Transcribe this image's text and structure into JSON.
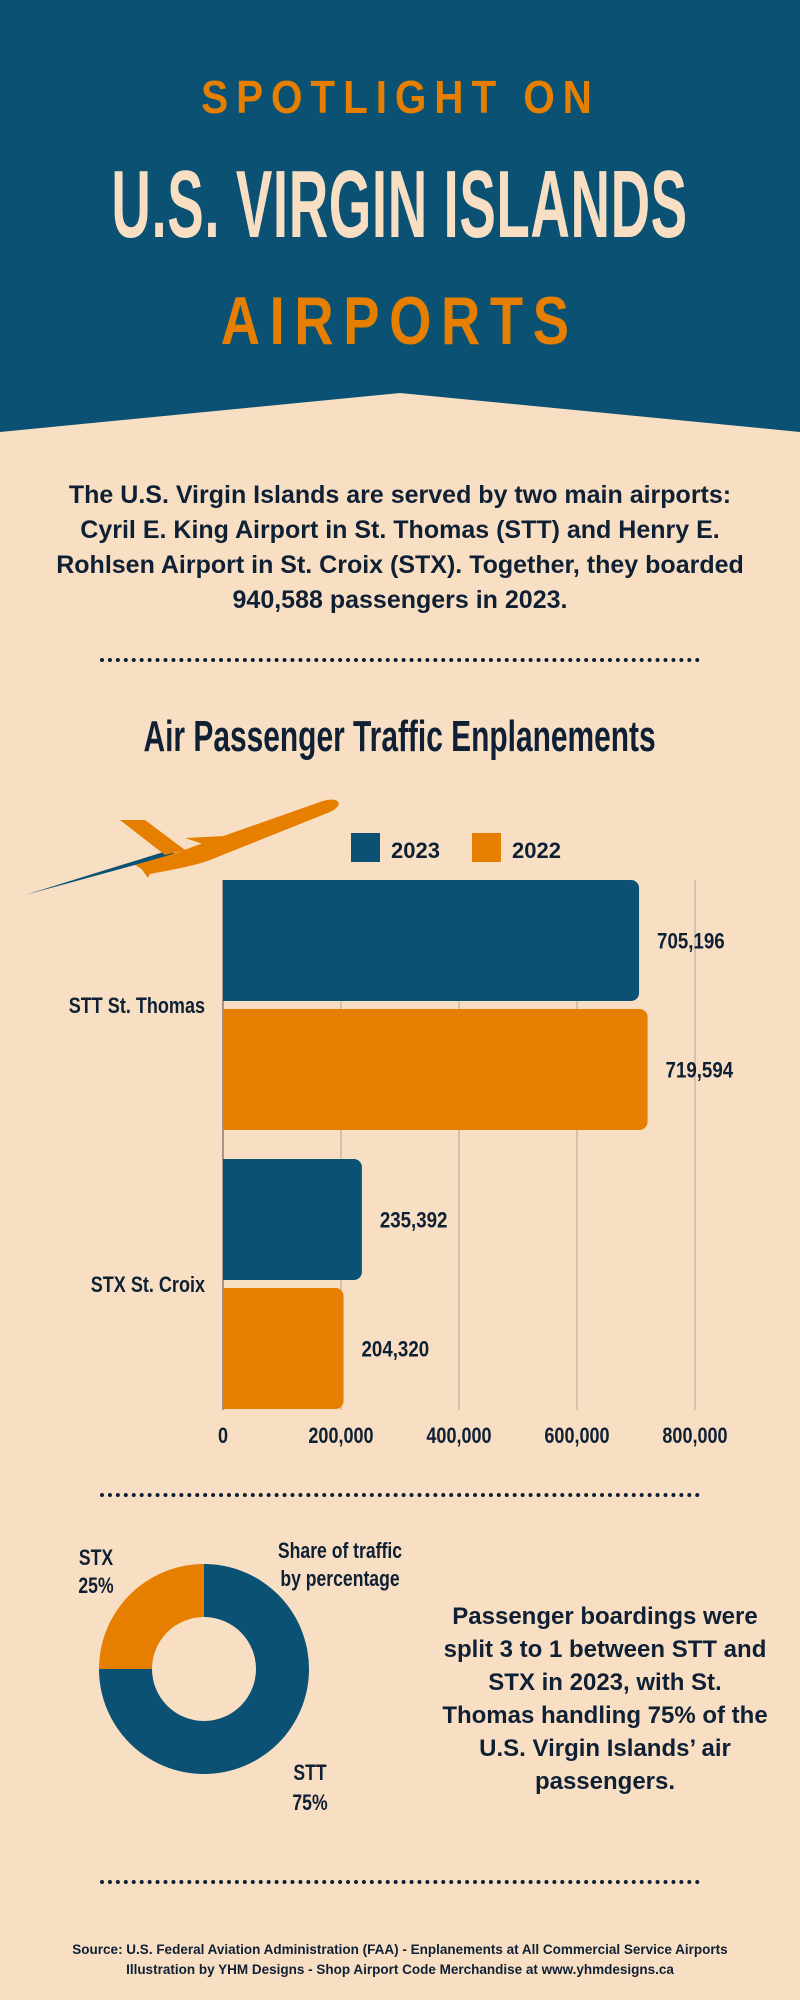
{
  "header": {
    "kicker": "SPOTLIGHT ON",
    "title": "U.S. VIRGIN ISLANDS",
    "subtitle": "AIRPORTS"
  },
  "intro": "The U.S. Virgin Islands are served by two main airports: Cyril E. King Airport in St. Thomas (STT) and Henry E. Rohlsen Airport in St. Croix (STX). Together, they boarded 940,588 passengers in 2023.",
  "colors": {
    "blue": "#0a5173",
    "orange": "#e67e00",
    "cream": "#f8dfc4",
    "text": "#0f2035"
  },
  "chart_data": [
    {
      "type": "bar",
      "orientation": "horizontal",
      "title": "Air Passenger Traffic Enplanements",
      "categories": [
        "STT St. Thomas",
        "STX St. Croix"
      ],
      "series": [
        {
          "name": "2023",
          "color": "#0a5173",
          "values": [
            705196,
            235392
          ],
          "labels": [
            "705,196",
            "235,392"
          ]
        },
        {
          "name": "2022",
          "color": "#e67e00",
          "values": [
            719594,
            204320
          ],
          "labels": [
            "719,594",
            "204,320"
          ]
        }
      ],
      "xlim": [
        0,
        800000
      ],
      "xticks": [
        0,
        200000,
        400000,
        600000,
        800000
      ],
      "xtick_labels": [
        "0",
        "200,000",
        "400,000",
        "600,000",
        "800,000"
      ],
      "grid": true,
      "legend": "top"
    },
    {
      "type": "pie",
      "donut": true,
      "title": "Share of traffic by percentage",
      "slices": [
        {
          "label": "STT",
          "value": 75,
          "text": "75%",
          "color": "#0a5173"
        },
        {
          "label": "STX",
          "value": 25,
          "text": "25%",
          "color": "#e67e00"
        }
      ]
    }
  ],
  "summary": "Passenger boardings were split 3 to 1 between STT and STX in 2023, with St. Thomas handling 75% of the U.S. Virgin Islands’ air passengers.",
  "source": {
    "line1": "Source: U.S. Federal Aviation Administration (FAA) - Enplanements at All Commercial Service Airports",
    "line2": "Illustration by YHM Designs - Shop Airport Code Merchandise at www.yhmdesigns.ca"
  }
}
